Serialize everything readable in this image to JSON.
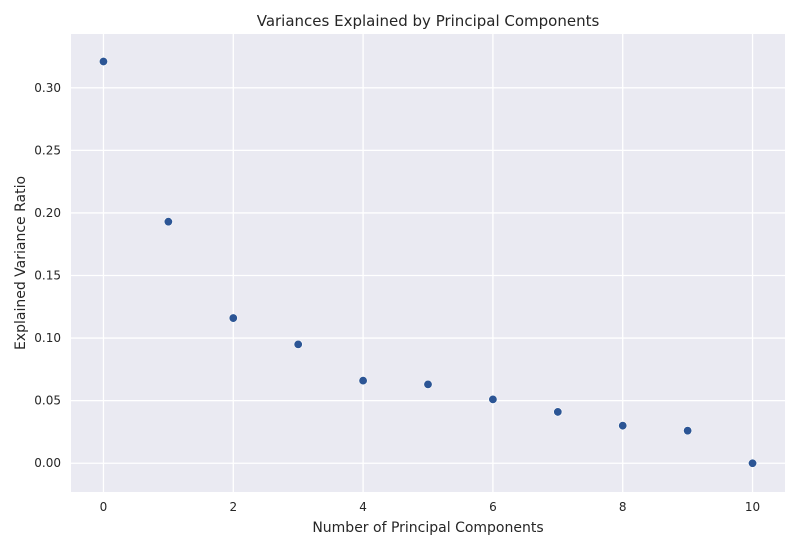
{
  "chart_data": {
    "type": "scatter",
    "title": "Variances Explained by Principal Components",
    "xlabel": "Number of Principal Components",
    "ylabel": "Explained Variance Ratio",
    "xlim": [
      -0.5,
      10.5
    ],
    "ylim": [
      -0.023,
      0.343
    ],
    "xticks": [
      0,
      2,
      4,
      6,
      8,
      10
    ],
    "xtick_labels": [
      "0",
      "2",
      "4",
      "6",
      "8",
      "10"
    ],
    "yticks": [
      0.0,
      0.05,
      0.1,
      0.15,
      0.2,
      0.25,
      0.3
    ],
    "ytick_labels": [
      "0.00",
      "0.05",
      "0.10",
      "0.15",
      "0.20",
      "0.25",
      "0.30"
    ],
    "grid": true,
    "series": [
      {
        "name": "Explained Variance Ratio",
        "color": "#2c5595",
        "x": [
          0,
          1,
          2,
          3,
          4,
          5,
          6,
          7,
          8,
          9,
          10
        ],
        "y": [
          0.321,
          0.193,
          0.116,
          0.095,
          0.066,
          0.063,
          0.051,
          0.041,
          0.03,
          0.026,
          0.0
        ]
      }
    ],
    "colors": {
      "background": "#eaeaf2",
      "grid": "#ffffff",
      "text": "#262626"
    }
  }
}
